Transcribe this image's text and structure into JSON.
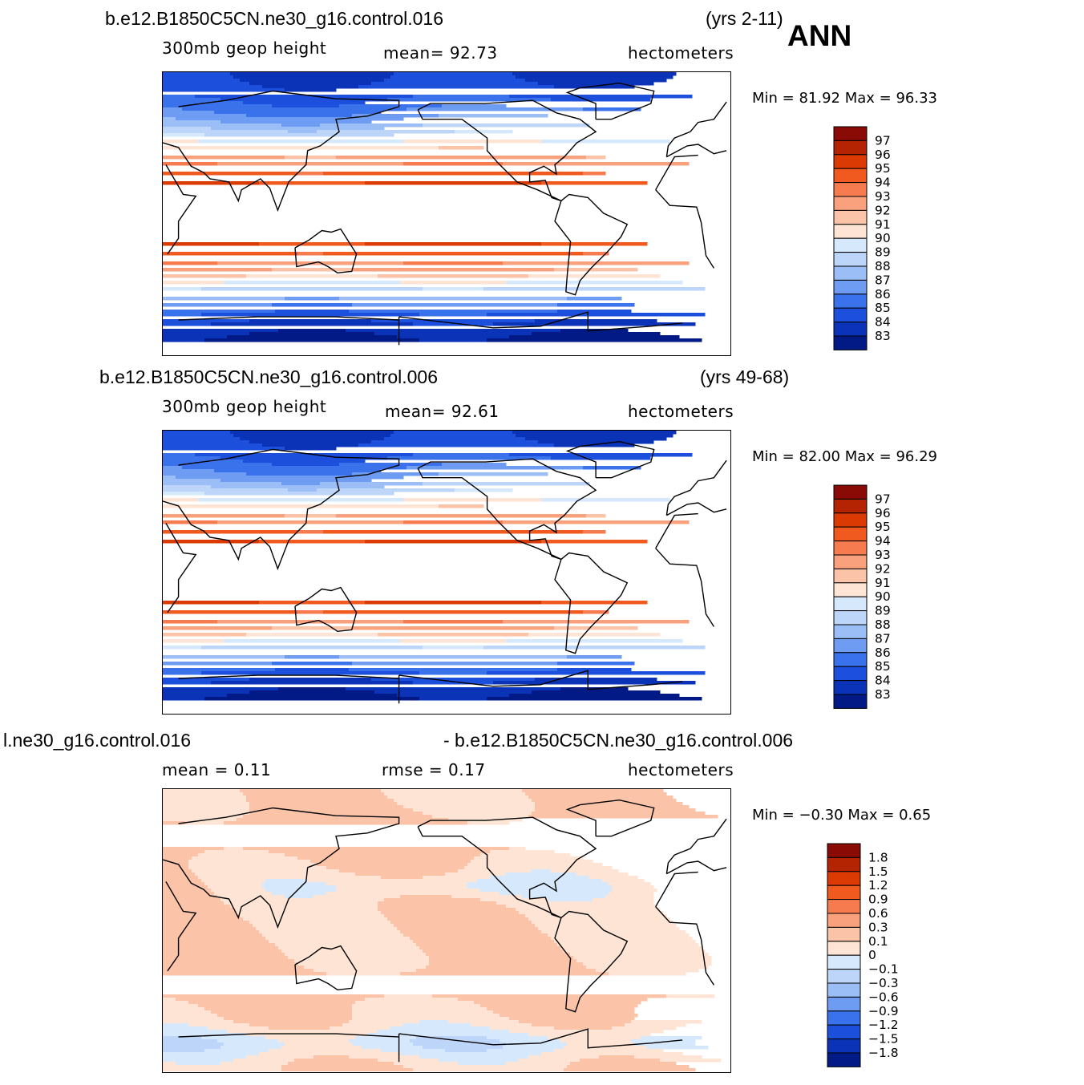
{
  "season": "ANN",
  "panels": [
    {
      "case": "b.e12.B1850C5CN.ne30_g16.control.016",
      "years": "(yrs 2-11)",
      "variable": "300mb  geop  height",
      "stat1": "mean=   92.73",
      "stat2": "",
      "units": "hectometers",
      "minmax": "Min =    81.92  Max =    96.33",
      "levels": [
        "97",
        "96",
        "95",
        "94",
        "93",
        "92",
        "91",
        "90",
        "89",
        "88",
        "87",
        "86",
        "85",
        "84",
        "83"
      ],
      "colors": [
        "#8a0a05",
        "#b42403",
        "#dc3a03",
        "#f15a1e",
        "#f67c4f",
        "#f9a07c",
        "#fbc3a8",
        "#fde4d4",
        "#d6e8fb",
        "#bcd5f8",
        "#9bbef6",
        "#6d9cf2",
        "#3a72ec",
        "#1b4fdc",
        "#0a33b8",
        "#021a86"
      ],
      "field": "height"
    },
    {
      "case": "b.e12.B1850C5CN.ne30_g16.control.006",
      "years": "(yrs 49-68)",
      "variable": "300mb  geop  height",
      "stat1": "mean=   92.61",
      "stat2": "",
      "units": "hectometers",
      "minmax": "Min =    82.00  Max =    96.29",
      "levels": [
        "97",
        "96",
        "95",
        "94",
        "93",
        "92",
        "91",
        "90",
        "89",
        "88",
        "87",
        "86",
        "85",
        "84",
        "83"
      ],
      "colors": [
        "#8a0a05",
        "#b42403",
        "#dc3a03",
        "#f15a1e",
        "#f67c4f",
        "#f9a07c",
        "#fbc3a8",
        "#fde4d4",
        "#d6e8fb",
        "#bcd5f8",
        "#9bbef6",
        "#6d9cf2",
        "#3a72ec",
        "#1b4fdc",
        "#0a33b8",
        "#021a86"
      ],
      "field": "height"
    },
    {
      "case": "l.ne30_g16.control.016",
      "years": "- b.e12.B1850C5CN.ne30_g16.control.006",
      "variable": "mean =     0.11",
      "stat1": "rmse  =     0.17",
      "stat2": "",
      "units": "hectometers",
      "minmax": "Min =   −0.30  Max =     0.65",
      "levels": [
        "1.8",
        "1.5",
        "1.2",
        "0.9",
        "0.6",
        "0.3",
        "0.1",
        "0",
        "−0.1",
        "−0.3",
        "−0.6",
        "−0.9",
        "−1.2",
        "−1.5",
        "−1.8"
      ],
      "colors": [
        "#8a0a05",
        "#b42403",
        "#dc3a03",
        "#f15a1e",
        "#f67c4f",
        "#f9a07c",
        "#fbc3a8",
        "#fde4d4",
        "#d6e8fb",
        "#bcd5f8",
        "#9bbef6",
        "#6d9cf2",
        "#3a72ec",
        "#1b4fdc",
        "#0a33b8",
        "#021a86"
      ],
      "field": "diff"
    }
  ]
}
